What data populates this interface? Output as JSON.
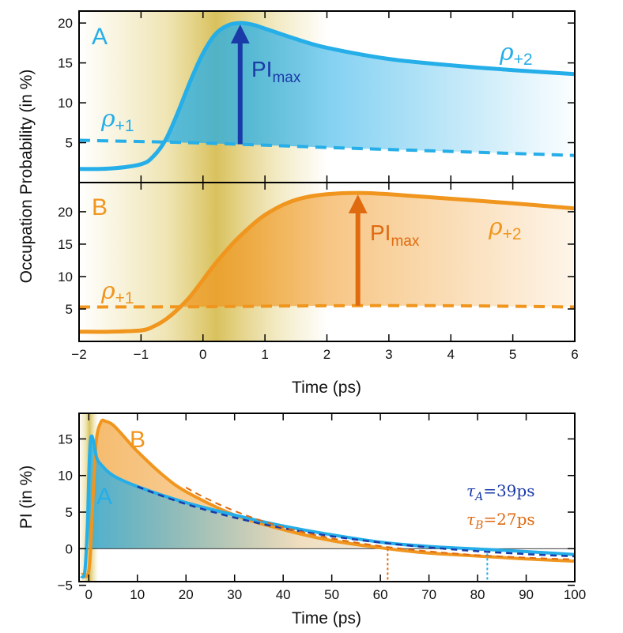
{
  "colors": {
    "blue": "#25aee8",
    "darkblue": "#1a3aa8",
    "orange": "#f0961e",
    "darkorange": "#e06a10",
    "laser": "#dcc55a"
  },
  "chart_data": [
    {
      "type": "line",
      "panel": "A",
      "ylabel": "Occupation Probability  (in %)",
      "xlim": [
        -2,
        6
      ],
      "ylim": [
        0,
        21.5
      ],
      "yticks": [
        "5",
        "10",
        "15",
        "20"
      ],
      "series": [
        {
          "name": "ρ+2",
          "style": "solid",
          "x": [
            -2,
            -1.5,
            -1,
            -0.8,
            -0.6,
            -0.4,
            -0.2,
            0,
            0.2,
            0.4,
            0.6,
            0.8,
            1,
            1.5,
            2,
            3,
            4,
            5,
            6
          ],
          "y": [
            1.7,
            1.75,
            2.3,
            3.3,
            5.4,
            8.9,
            12.8,
            16.2,
            18.6,
            19.7,
            20.0,
            19.8,
            19.3,
            18.0,
            16.9,
            15.5,
            14.7,
            14.1,
            13.6
          ]
        },
        {
          "name": "ρ+1",
          "style": "dashed",
          "x": [
            -2,
            0,
            2,
            4,
            6
          ],
          "y": [
            5.3,
            4.95,
            4.4,
            3.9,
            3.4
          ]
        }
      ],
      "annotation": {
        "label": "PImax",
        "x": 0.6,
        "from": 4.8,
        "to": 20.0
      },
      "labels": {
        "letter": "A",
        "rho2": "ρ",
        "rho2_sub": "+2",
        "rho1": "ρ",
        "rho1_sub": "+1",
        "pi": "PI",
        "pi_sub": "max"
      }
    },
    {
      "type": "line",
      "panel": "B",
      "xlabel": "Time  (ps)",
      "xlim": [
        -2,
        6
      ],
      "ylim": [
        0,
        24.5
      ],
      "xticks": [
        "−2",
        "−1",
        "0",
        "1",
        "2",
        "3",
        "4",
        "5",
        "6"
      ],
      "yticks": [
        "5",
        "10",
        "15",
        "20"
      ],
      "series": [
        {
          "name": "ρ+2",
          "style": "solid",
          "x": [
            -2,
            -1.5,
            -1,
            -0.8,
            -0.6,
            -0.4,
            -0.2,
            0,
            0.2,
            0.5,
            0.8,
            1,
            1.3,
            1.6,
            2,
            2.5,
            3,
            4,
            5,
            6
          ],
          "y": [
            1.5,
            1.5,
            1.7,
            2.3,
            3.4,
            5.0,
            7.0,
            9.5,
            12.0,
            15.3,
            18.0,
            19.5,
            21.1,
            22.1,
            22.7,
            22.9,
            22.7,
            22.0,
            21.3,
            20.5
          ]
        },
        {
          "name": "ρ+1",
          "style": "dashed",
          "x": [
            -2,
            0,
            2,
            4,
            6
          ],
          "y": [
            5.3,
            5.35,
            5.5,
            5.5,
            5.3
          ]
        }
      ],
      "annotation": {
        "label": "PImax",
        "x": 2.5,
        "from": 5.5,
        "to": 22.9
      },
      "labels": {
        "letter": "B",
        "rho2": "ρ",
        "rho2_sub": "+2",
        "rho1": "ρ",
        "rho1_sub": "+1",
        "pi": "PI",
        "pi_sub": "max"
      }
    },
    {
      "type": "line",
      "panel": "PI",
      "xlabel": "Time  (ps)",
      "ylabel": "PI   (in %)",
      "xlim": [
        -2,
        100
      ],
      "ylim": [
        -4.5,
        18.5
      ],
      "xticks": [
        "0",
        "10",
        "20",
        "30",
        "40",
        "50",
        "60",
        "70",
        "80",
        "90",
        "100"
      ],
      "yticks": [
        "−5",
        "0",
        "5",
        "10",
        "15"
      ],
      "series": [
        {
          "name": "A",
          "x": [
            -1.5,
            -0.8,
            -0.3,
            0,
            0.3,
            0.6,
            1,
            1.6,
            2.5,
            5,
            10,
            20,
            30,
            40,
            50,
            60,
            70,
            82,
            90,
            100
          ],
          "y": [
            -4.0,
            -3.0,
            3.0,
            10.0,
            14.5,
            15.4,
            14.6,
            12.5,
            11.5,
            10.0,
            8.5,
            6.3,
            4.6,
            3.1,
            1.9,
            0.9,
            0.3,
            -0.1,
            -0.4,
            -0.8
          ]
        },
        {
          "name": "B",
          "x": [
            -1.5,
            0,
            0.8,
            1.5,
            2.5,
            3.5,
            5,
            7,
            10,
            15,
            20,
            30,
            40,
            50,
            61.5,
            70,
            80,
            90,
            100
          ],
          "y": [
            -3.5,
            -3.0,
            6.0,
            14.5,
            17.3,
            17.4,
            16.9,
            15.5,
            13.3,
            10.2,
            7.8,
            4.6,
            2.6,
            1.1,
            0.0,
            -0.6,
            -1.0,
            -1.4,
            -1.7
          ]
        }
      ],
      "zero_crossings": [
        61.5,
        82
      ],
      "letters": {
        "a": "A",
        "b": "B"
      },
      "tau": [
        {
          "sym": "τ",
          "sub": "A",
          "rest": "=39ps"
        },
        {
          "sym": "τ",
          "sub": "B",
          "rest": "=27ps"
        }
      ]
    }
  ]
}
